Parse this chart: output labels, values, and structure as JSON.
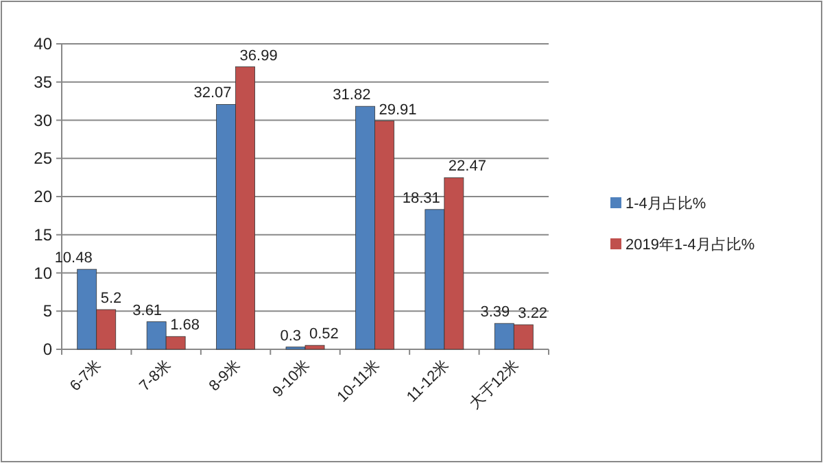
{
  "chart_data": {
    "type": "bar",
    "categories": [
      "6-7米",
      "7-8米",
      "8-9米",
      "9-10米",
      "10-11米",
      "11-12米",
      "大于12米"
    ],
    "series": [
      {
        "name": "1-4月占比%",
        "color": "#4f81bd",
        "values": [
          10.48,
          3.61,
          32.07,
          0.3,
          31.82,
          18.31,
          3.39
        ]
      },
      {
        "name": "2019年1-4月占比%",
        "color": "#c0504d",
        "values": [
          5.2,
          1.68,
          36.99,
          0.52,
          29.91,
          22.47,
          3.22
        ]
      }
    ],
    "ylim": [
      0,
      40
    ],
    "yticks": [
      0,
      5,
      10,
      15,
      20,
      25,
      30,
      35,
      40
    ],
    "grid": "y",
    "legend": "right",
    "data_labels": true
  }
}
